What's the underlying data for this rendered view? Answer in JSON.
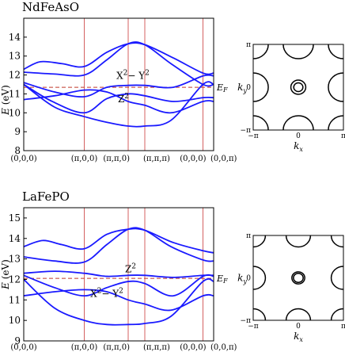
{
  "chart_data": [
    {
      "type": "line",
      "title": "NdFeAsO",
      "ylabel": "E (eV)",
      "ylim": [
        8,
        15
      ],
      "yticks": [
        8,
        9,
        10,
        11,
        12,
        13,
        14
      ],
      "xlim": [
        0,
        8
      ],
      "xticks": [
        {
          "label": "(0,0,0)",
          "x": 0
        },
        {
          "label": "(π,0,0)",
          "x": 2.55
        },
        {
          "label": "(π,π,0)",
          "x": 4.4
        },
        {
          "label": "(π,π,π)",
          "x": 5.1
        },
        {
          "label": "(0,0,0)",
          "x": 7.55
        },
        {
          "label": "(0,0,π)",
          "x": 8
        }
      ],
      "vlines": [
        2.55,
        4.4,
        5.1,
        7.55
      ],
      "fermi": {
        "label": "E",
        "sub": "F",
        "value": 11.35
      },
      "annotations": [
        {
          "text": "X",
          "sup": "2",
          "rest": "− Y",
          "sup2": "2",
          "x": 4.6,
          "y": 11.8
        },
        {
          "text": "Z",
          "sup": "2",
          "rest": "",
          "sup2": "",
          "x": 4.2,
          "y": 10.55
        }
      ],
      "series": [
        {
          "x": [
            0,
            0.7,
            1.6,
            2.55,
            3.5,
            4.4,
            5.1,
            6.3,
            7.55,
            8
          ],
          "y": [
            12.3,
            12.7,
            12.6,
            12.45,
            13.2,
            13.65,
            13.6,
            12.9,
            12.1,
            12.1
          ]
        },
        {
          "x": [
            0,
            1.3,
            2.55,
            3.5,
            4.4,
            5.1,
            6.2,
            7.55,
            8
          ],
          "y": [
            12.15,
            12.05,
            12.0,
            12.8,
            13.65,
            13.6,
            12.6,
            11.5,
            11.5
          ]
        },
        {
          "x": [
            0,
            1.3,
            2.55,
            3.5,
            4.4,
            5.1,
            6.3,
            7.55,
            8
          ],
          "y": [
            11.6,
            11.1,
            10.85,
            11.35,
            11.45,
            11.45,
            11.35,
            11.95,
            11.95
          ]
        },
        {
          "x": [
            0,
            1.2,
            2.55,
            3.5,
            4.4,
            5.1,
            6.3,
            7.55,
            8
          ],
          "y": [
            11.5,
            10.6,
            10.0,
            10.75,
            11.0,
            10.9,
            10.6,
            10.8,
            10.8
          ]
        },
        {
          "x": [
            0,
            1.3,
            2.55,
            3.5,
            4.4,
            5.1,
            6.2,
            7.55,
            8
          ],
          "y": [
            10.7,
            10.9,
            11.2,
            11.1,
            10.6,
            10.4,
            10.0,
            10.6,
            10.6
          ]
        },
        {
          "x": [
            0,
            1.3,
            2.55,
            3.5,
            4.4,
            5.1,
            6.2,
            7.55,
            8
          ],
          "y": [
            11.5,
            10.3,
            9.8,
            9.5,
            9.3,
            9.3,
            9.6,
            11.5,
            11.5
          ]
        }
      ]
    },
    {
      "type": "line",
      "title": "LaFePO",
      "ylabel": "E (eV)",
      "ylim": [
        9,
        15.5
      ],
      "yticks": [
        9,
        10,
        11,
        12,
        13,
        14,
        15
      ],
      "xlim": [
        0,
        8
      ],
      "xticks": [
        {
          "label": "(0,0,0)",
          "x": 0
        },
        {
          "label": "(π,0,0)",
          "x": 2.55
        },
        {
          "label": "(π,π,0)",
          "x": 4.4
        },
        {
          "label": "(π,π,π)",
          "x": 5.1
        },
        {
          "label": "(0,0,0)",
          "x": 7.55
        },
        {
          "label": "(0,0,π)",
          "x": 8
        }
      ],
      "vlines": [
        2.55,
        4.4,
        5.1,
        7.55
      ],
      "fermi": {
        "label": "E",
        "sub": "F",
        "value": 12.05
      },
      "annotations": [
        {
          "text": "Z",
          "sup": "2",
          "rest": "",
          "sup2": "",
          "x": 4.5,
          "y": 12.35
        },
        {
          "text": "X",
          "sup": "2",
          "rest": "− Y",
          "sup2": "2",
          "x": 3.5,
          "y": 11.15
        }
      ],
      "series": [
        {
          "x": [
            0,
            0.8,
            1.6,
            2.55,
            3.5,
            4.4,
            5.1,
            6.3,
            7.55,
            8
          ],
          "y": [
            13.6,
            13.9,
            13.7,
            13.5,
            14.2,
            14.45,
            14.4,
            13.8,
            13.4,
            13.3
          ]
        },
        {
          "x": [
            0,
            1.3,
            2.55,
            3.5,
            4.4,
            5.1,
            6.2,
            7.55,
            8
          ],
          "y": [
            13.1,
            12.9,
            12.85,
            13.7,
            14.45,
            14.4,
            13.6,
            12.95,
            12.9
          ]
        },
        {
          "x": [
            0,
            1.3,
            2.55,
            3.5,
            4.4,
            5.1,
            6.3,
            7.55,
            8
          ],
          "y": [
            12.3,
            12.4,
            12.3,
            12.15,
            12.2,
            12.2,
            12.1,
            12.2,
            12.2
          ]
        },
        {
          "x": [
            0,
            1.3,
            2.55,
            3.5,
            4.4,
            5.1,
            6.3,
            7.55,
            8
          ],
          "y": [
            12.2,
            11.6,
            11.2,
            11.6,
            11.9,
            11.8,
            11.2,
            12.15,
            12.15
          ]
        },
        {
          "x": [
            0,
            1.3,
            2.55,
            3.5,
            4.4,
            5.1,
            6.2,
            7.55,
            8
          ],
          "y": [
            11.2,
            11.4,
            11.5,
            11.4,
            11.0,
            10.8,
            10.5,
            11.2,
            11.2
          ]
        },
        {
          "x": [
            0,
            1.3,
            2.55,
            3.5,
            4.4,
            5.1,
            6.2,
            7.55,
            8
          ],
          "y": [
            12.0,
            10.6,
            10.0,
            9.8,
            9.8,
            9.85,
            10.2,
            11.9,
            11.9
          ]
        }
      ]
    }
  ],
  "fermi_surfaces": [
    {
      "ylabel": "k",
      "ylabel_sub": "y",
      "xlabel": "k",
      "xlabel_sub": "x",
      "ticks": [
        "−π",
        "0",
        "π"
      ],
      "xlim": [
        -3.1416,
        3.1416
      ],
      "ylim": [
        -3.1416,
        3.1416
      ],
      "corner_radius": 1.05,
      "center_rings": [
        0.52,
        0.32
      ]
    },
    {
      "ylabel": "k",
      "ylabel_sub": "y",
      "xlabel": "k",
      "xlabel_sub": "x",
      "ticks": [
        "−π",
        "0",
        "π"
      ],
      "xlim": [
        -3.1416,
        3.1416
      ],
      "ylim": [
        -3.1416,
        3.1416
      ],
      "corner_radius": 0.85,
      "center_rings": [
        0.45,
        0.34
      ]
    }
  ],
  "colors": {
    "bands": "#1a1aff",
    "vlines": "#d05050",
    "fermi": "#c0392b",
    "axes": "#000000"
  }
}
